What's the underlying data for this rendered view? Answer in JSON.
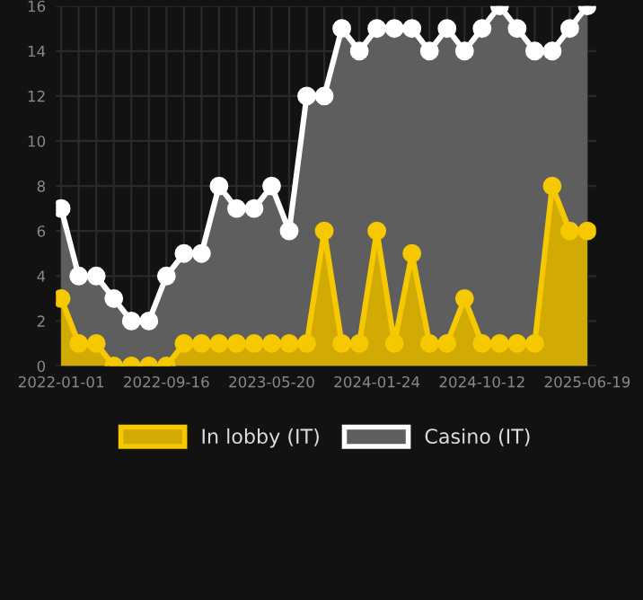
{
  "chart_data": {
    "type": "area",
    "categories": [
      "2022-01-01",
      null,
      null,
      null,
      null,
      null,
      "2022-09-16",
      null,
      null,
      null,
      null,
      null,
      "2023-05-20",
      null,
      null,
      null,
      null,
      null,
      "2024-01-24",
      null,
      null,
      null,
      null,
      null,
      "2024-10-12",
      null,
      null,
      null,
      null,
      null,
      "2025-06-19"
    ],
    "series": [
      {
        "name": "In lobby (IT)",
        "color": "#f5c800",
        "values": [
          3,
          1,
          1,
          0,
          0,
          0,
          0,
          1,
          1,
          1,
          1,
          1,
          1,
          1,
          1,
          6,
          1,
          1,
          6,
          1,
          5,
          1,
          1,
          3,
          1,
          1,
          1,
          1,
          8,
          6,
          6
        ]
      },
      {
        "name": "Casino (IT)",
        "color": "#ffffff",
        "values": [
          7,
          4,
          4,
          3,
          2,
          2,
          4,
          5,
          5,
          8,
          7,
          7,
          8,
          6,
          12,
          12,
          15,
          14,
          15,
          15,
          15,
          14,
          15,
          14,
          15,
          16,
          15,
          14,
          14,
          15,
          16
        ]
      }
    ],
    "ylim": [
      0,
      16
    ],
    "yticks": [
      0,
      2,
      4,
      6,
      8,
      10,
      12,
      14,
      16
    ],
    "grid": true,
    "legend": "bottom",
    "marker": "circle",
    "line_style": "solid"
  }
}
